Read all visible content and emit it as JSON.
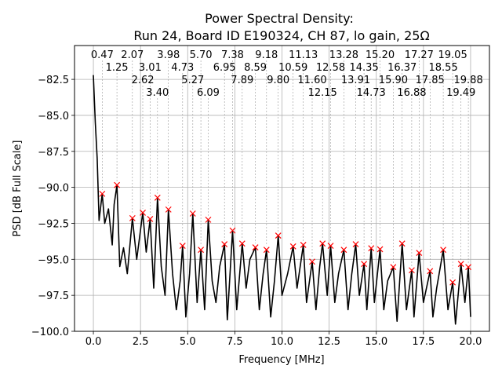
{
  "chart_data": {
    "type": "line",
    "title": [
      "Power Spectral Density:",
      "Run 24, Board ID E190324, CH 87, lo gain, 25Ω"
    ],
    "xlabel": "Frequency [MHz]",
    "ylabel": "PSD [dB Full Scale]",
    "xlim": [
      -1.0,
      21.0
    ],
    "ylim": [
      -100.0,
      -80.15
    ],
    "grid": true,
    "x_ticks": [
      0.0,
      2.5,
      5.0,
      7.5,
      10.0,
      12.5,
      15.0,
      17.5,
      20.0
    ],
    "x_tick_labels": [
      "0.0",
      "2.5",
      "5.0",
      "7.5",
      "10.0",
      "12.5",
      "15.0",
      "17.5",
      "20.0"
    ],
    "y_ticks": [
      -82.5,
      -85.0,
      -87.5,
      -90.0,
      -92.5,
      -95.0,
      -97.5,
      -100.0
    ],
    "y_tick_labels": [
      "−82.5",
      "−85.0",
      "−87.5",
      "−90.0",
      "−92.5",
      "−95.0",
      "−97.5",
      "−100.0"
    ],
    "line_color": "#000000",
    "marker_color": "#ff0000",
    "series": [
      {
        "name": "PSD",
        "x": [
          0.0,
          0.1,
          0.2,
          0.3,
          0.47,
          0.6,
          0.8,
          1.0,
          1.1,
          1.25,
          1.4,
          1.6,
          1.8,
          2.07,
          2.3,
          2.62,
          2.8,
          3.01,
          3.2,
          3.4,
          3.6,
          3.8,
          3.98,
          4.2,
          4.4,
          4.6,
          4.73,
          4.9,
          5.1,
          5.27,
          5.5,
          5.7,
          5.9,
          6.09,
          6.3,
          6.5,
          6.7,
          6.95,
          7.1,
          7.38,
          7.6,
          7.89,
          8.1,
          8.3,
          8.59,
          8.8,
          9.0,
          9.18,
          9.4,
          9.6,
          9.8,
          10.0,
          10.3,
          10.59,
          10.8,
          11.13,
          11.3,
          11.6,
          11.8,
          12.0,
          12.15,
          12.4,
          12.58,
          12.8,
          13.0,
          13.28,
          13.5,
          13.7,
          13.91,
          14.1,
          14.35,
          14.5,
          14.73,
          14.9,
          15.2,
          15.4,
          15.6,
          15.9,
          16.1,
          16.37,
          16.6,
          16.88,
          17.0,
          17.27,
          17.5,
          17.85,
          18.0,
          18.2,
          18.55,
          18.8,
          19.05,
          19.2,
          19.49,
          19.7,
          19.88,
          20.0
        ],
        "y": [
          -82.2,
          -85.5,
          -88.0,
          -92.3,
          -90.45,
          -92.5,
          -91.5,
          -94.0,
          -91.2,
          -89.84,
          -95.5,
          -94.2,
          -96.0,
          -92.14,
          -95.0,
          -91.76,
          -94.5,
          -92.2,
          -97.0,
          -90.72,
          -95.5,
          -97.5,
          -91.54,
          -96.0,
          -98.5,
          -96.5,
          -94.06,
          -99.0,
          -96.0,
          -91.82,
          -98.0,
          -94.34,
          -98.5,
          -92.25,
          -96.5,
          -98.0,
          -95.5,
          -93.95,
          -99.2,
          -93.0,
          -98.5,
          -93.9,
          -97.0,
          -95.0,
          -94.17,
          -98.5,
          -96.0,
          -94.34,
          -99.0,
          -96.5,
          -93.35,
          -97.5,
          -96.0,
          -94.1,
          -97.0,
          -94.0,
          -98.0,
          -95.16,
          -98.5,
          -95.5,
          -93.9,
          -97.5,
          -94.06,
          -98.0,
          -96.0,
          -94.34,
          -98.5,
          -96.0,
          -93.95,
          -97.5,
          -95.32,
          -98.5,
          -94.23,
          -98.0,
          -94.3,
          -98.5,
          -96.5,
          -95.54,
          -99.3,
          -93.9,
          -98.5,
          -95.76,
          -99.0,
          -94.55,
          -98.0,
          -95.82,
          -99.0,
          -97.0,
          -94.34,
          -98.5,
          -96.6,
          -99.5,
          -95.32,
          -98.0,
          -95.54,
          -99.0
        ]
      }
    ],
    "peaks": [
      {
        "x": 0.47,
        "y": -90.45,
        "label": "0.47"
      },
      {
        "x": 1.25,
        "y": -89.84,
        "label": "1.25"
      },
      {
        "x": 2.07,
        "y": -92.14,
        "label": "2.07"
      },
      {
        "x": 2.62,
        "y": -91.76,
        "label": "2.62"
      },
      {
        "x": 3.01,
        "y": -92.2,
        "label": "3.01"
      },
      {
        "x": 3.4,
        "y": -90.72,
        "label": "3.40"
      },
      {
        "x": 3.98,
        "y": -91.54,
        "label": "3.98"
      },
      {
        "x": 4.73,
        "y": -94.06,
        "label": "4.73"
      },
      {
        "x": 5.27,
        "y": -91.82,
        "label": "5.27"
      },
      {
        "x": 5.7,
        "y": -94.34,
        "label": "5.70"
      },
      {
        "x": 6.09,
        "y": -92.25,
        "label": "6.09"
      },
      {
        "x": 6.95,
        "y": -93.95,
        "label": "6.95"
      },
      {
        "x": 7.38,
        "y": -93.0,
        "label": "7.38"
      },
      {
        "x": 7.89,
        "y": -93.9,
        "label": "7.89"
      },
      {
        "x": 8.59,
        "y": -94.17,
        "label": "8.59"
      },
      {
        "x": 9.18,
        "y": -94.34,
        "label": "9.18"
      },
      {
        "x": 9.8,
        "y": -93.35,
        "label": "9.80"
      },
      {
        "x": 10.59,
        "y": -94.1,
        "label": "10.59"
      },
      {
        "x": 11.13,
        "y": -94.0,
        "label": "11.13"
      },
      {
        "x": 11.6,
        "y": -95.16,
        "label": "11.60"
      },
      {
        "x": 12.15,
        "y": -93.9,
        "label": "12.15"
      },
      {
        "x": 12.58,
        "y": -94.06,
        "label": "12.58"
      },
      {
        "x": 13.28,
        "y": -94.34,
        "label": "13.28"
      },
      {
        "x": 13.91,
        "y": -93.95,
        "label": "13.91"
      },
      {
        "x": 14.35,
        "y": -95.32,
        "label": "14.35"
      },
      {
        "x": 14.73,
        "y": -94.23,
        "label": "14.73"
      },
      {
        "x": 15.2,
        "y": -94.3,
        "label": "15.20"
      },
      {
        "x": 15.9,
        "y": -95.54,
        "label": "15.90"
      },
      {
        "x": 16.37,
        "y": -93.9,
        "label": "16.37"
      },
      {
        "x": 16.88,
        "y": -95.76,
        "label": "16.88"
      },
      {
        "x": 17.27,
        "y": -94.55,
        "label": "17.27"
      },
      {
        "x": 17.85,
        "y": -95.82,
        "label": "17.85"
      },
      {
        "x": 18.55,
        "y": -94.34,
        "label": "18.55"
      },
      {
        "x": 19.05,
        "y": -96.6,
        "label": "19.05"
      },
      {
        "x": 19.49,
        "y": -95.32,
        "label": "19.49"
      },
      {
        "x": 19.88,
        "y": -95.54,
        "label": "19.88"
      }
    ]
  }
}
